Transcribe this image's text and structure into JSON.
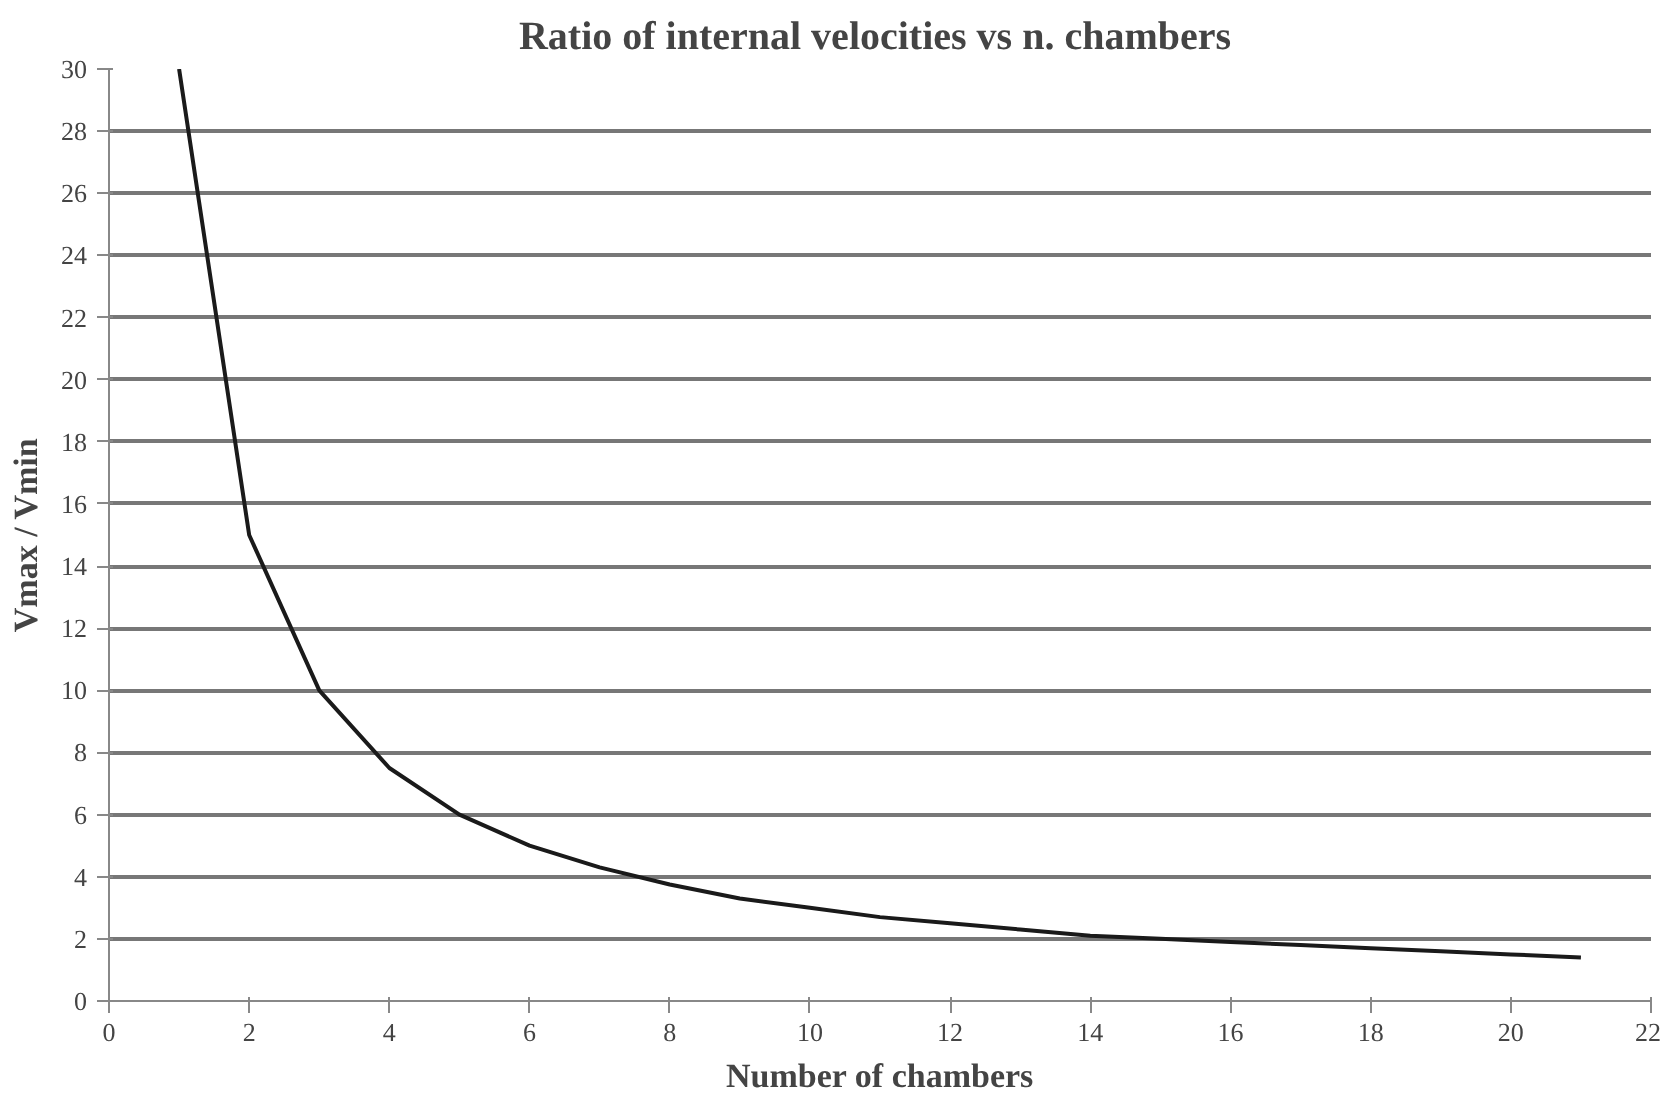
{
  "chart_data": {
    "type": "line",
    "title": "Ratio of  internal velocities vs n. chambers",
    "xlabel": "Number of chambers",
    "ylabel": "Vmax / Vmin",
    "x": [
      1,
      2,
      3,
      4,
      5,
      6,
      7,
      8,
      9,
      10,
      11,
      12,
      13,
      14,
      15,
      16,
      17,
      18,
      19,
      20,
      21
    ],
    "series": [
      {
        "color": "#1a1a1a",
        "values": [
          30,
          15,
          10,
          7.5,
          6,
          5,
          4.3,
          3.75,
          3.3,
          3,
          2.7,
          2.5,
          2.3,
          2.1,
          2,
          1.9,
          1.8,
          1.7,
          1.6,
          1.5,
          1.4
        ]
      }
    ],
    "xlim": [
      0,
      22
    ],
    "xticks": [
      0,
      2,
      4,
      6,
      8,
      10,
      12,
      14,
      16,
      18,
      20,
      22
    ],
    "ylim": [
      0,
      30
    ],
    "yticks": [
      0,
      2,
      4,
      6,
      8,
      10,
      12,
      14,
      16,
      18,
      20,
      22,
      24,
      26,
      28,
      30
    ],
    "grid": "y",
    "marker": "none",
    "line_style": "solid"
  }
}
